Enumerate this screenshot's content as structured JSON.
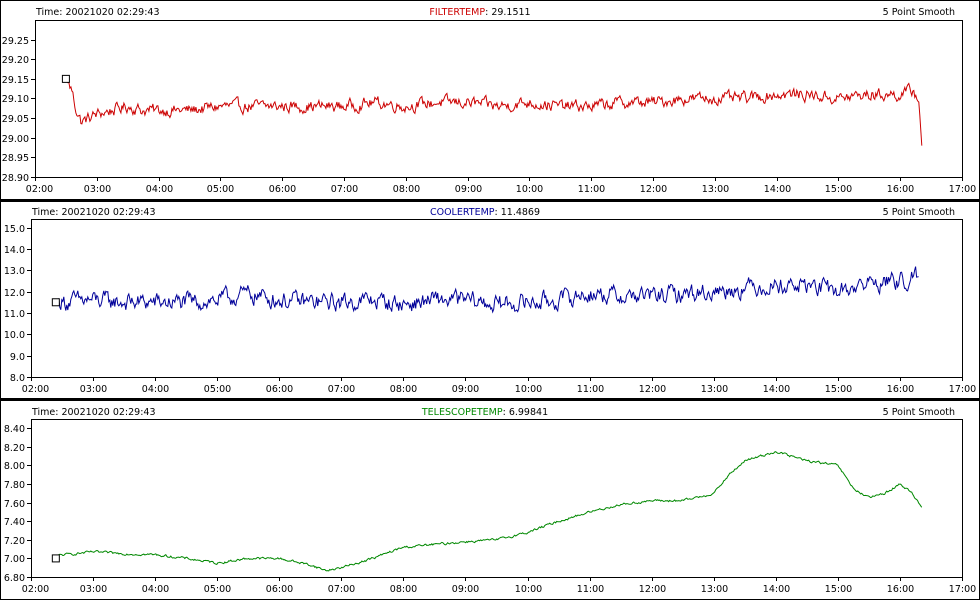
{
  "x_axis": {
    "ticks": [
      "02:00",
      "03:00",
      "04:00",
      "05:00",
      "06:00",
      "07:00",
      "08:00",
      "09:00",
      "10:00",
      "11:00",
      "12:00",
      "13:00",
      "14:00",
      "15:00",
      "16:00",
      "17:00"
    ]
  },
  "chart_data": [
    {
      "type": "line",
      "time_label": "Time: 20021020 02:29:43",
      "series_name": "FILTERTEMP",
      "series_value": "29.1511",
      "smooth_label": "5 Point Smooth",
      "color": "#cc0000",
      "xlim": [
        2.0,
        17.0
      ],
      "ylim": [
        28.9,
        29.3
      ],
      "yticks": [
        "28.90",
        "28.95",
        "29.00",
        "29.05",
        "29.10",
        "29.15",
        "29.20",
        "29.25"
      ],
      "x_range": [
        2.5,
        16.35
      ],
      "marker": {
        "x": 2.5,
        "y": 29.15
      },
      "series": [
        {
          "name": "FILTERTEMP",
          "x": [
            2.5,
            2.6,
            2.65,
            2.75,
            3.0,
            3.25,
            3.5,
            3.75,
            4.0,
            4.5,
            5.0,
            5.5,
            6.0,
            6.5,
            7.0,
            7.5,
            8.0,
            8.5,
            9.0,
            9.5,
            10.0,
            10.5,
            11.0,
            11.5,
            12.0,
            12.5,
            13.0,
            13.5,
            14.0,
            14.5,
            15.0,
            15.5,
            16.0,
            16.2,
            16.3,
            16.35
          ],
          "values": [
            29.15,
            29.12,
            29.08,
            29.04,
            29.06,
            29.07,
            29.08,
            29.07,
            29.07,
            29.07,
            29.08,
            29.08,
            29.08,
            29.08,
            29.08,
            29.09,
            29.08,
            29.09,
            29.09,
            29.08,
            29.09,
            29.08,
            29.08,
            29.09,
            29.09,
            29.1,
            29.1,
            29.1,
            29.11,
            29.11,
            29.1,
            29.11,
            29.11,
            29.12,
            29.1,
            28.98
          ]
        }
      ]
    },
    {
      "type": "line",
      "time_label": "Time: 20021020 02:29:43",
      "series_name": "COOLERTEMP",
      "series_value": "11.4869",
      "smooth_label": "5 Point Smooth",
      "color": "#000099",
      "xlim": [
        2.0,
        17.0
      ],
      "ylim": [
        8.0,
        15.4
      ],
      "yticks": [
        "8.0",
        "9.0",
        "10.0",
        "11.0",
        "12.0",
        "13.0",
        "14.0",
        "15.0"
      ],
      "x_range": [
        2.4,
        16.3
      ],
      "marker": {
        "x": 2.4,
        "y": 11.5
      },
      "series": [
        {
          "name": "COOLERTEMP",
          "x": [
            2.4,
            3.0,
            3.5,
            4.0,
            4.5,
            5.0,
            5.5,
            6.0,
            6.5,
            7.0,
            7.5,
            8.0,
            8.5,
            9.0,
            9.5,
            10.0,
            10.5,
            11.0,
            11.5,
            12.0,
            12.5,
            13.0,
            13.5,
            14.0,
            14.5,
            15.0,
            15.5,
            16.0,
            16.3
          ],
          "values": [
            11.5,
            11.6,
            11.5,
            11.5,
            11.5,
            11.6,
            11.9,
            11.6,
            11.5,
            11.5,
            11.6,
            11.4,
            11.6,
            11.6,
            11.4,
            11.5,
            11.6,
            11.9,
            11.8,
            11.8,
            11.9,
            12.0,
            12.2,
            12.3,
            12.3,
            12.0,
            12.4,
            12.5,
            12.7
          ]
        }
      ]
    },
    {
      "type": "line",
      "time_label": "Time: 20021020 02:29:43",
      "series_name": "TELESCOPETEMP",
      "series_value": "6.99841",
      "smooth_label": "5 Point Smooth",
      "color": "#008800",
      "xlim": [
        2.0,
        17.0
      ],
      "ylim": [
        6.8,
        8.5
      ],
      "yticks": [
        "6.80",
        "7.00",
        "7.20",
        "7.40",
        "7.60",
        "7.80",
        "8.00",
        "8.20",
        "8.40"
      ],
      "x_range": [
        2.4,
        16.35
      ],
      "marker": {
        "x": 2.4,
        "y": 7.0
      },
      "series": [
        {
          "name": "TELESCOPETEMP",
          "x": [
            2.4,
            3.0,
            3.5,
            4.0,
            4.5,
            5.0,
            5.5,
            6.0,
            6.5,
            6.75,
            7.0,
            7.5,
            8.0,
            8.5,
            9.0,
            9.5,
            10.0,
            10.5,
            11.0,
            11.5,
            12.0,
            12.5,
            13.0,
            13.25,
            13.5,
            13.75,
            14.0,
            14.25,
            14.5,
            15.0,
            15.25,
            15.5,
            15.75,
            16.0,
            16.2,
            16.35
          ],
          "values": [
            7.03,
            7.07,
            7.05,
            7.04,
            7.0,
            6.95,
            7.0,
            7.0,
            6.93,
            6.87,
            6.9,
            7.0,
            7.12,
            7.15,
            7.18,
            7.2,
            7.28,
            7.4,
            7.5,
            7.58,
            7.62,
            7.62,
            7.7,
            7.9,
            8.05,
            8.1,
            8.15,
            8.1,
            8.05,
            8.0,
            7.75,
            7.65,
            7.7,
            7.8,
            7.7,
            7.55
          ]
        }
      ]
    }
  ]
}
